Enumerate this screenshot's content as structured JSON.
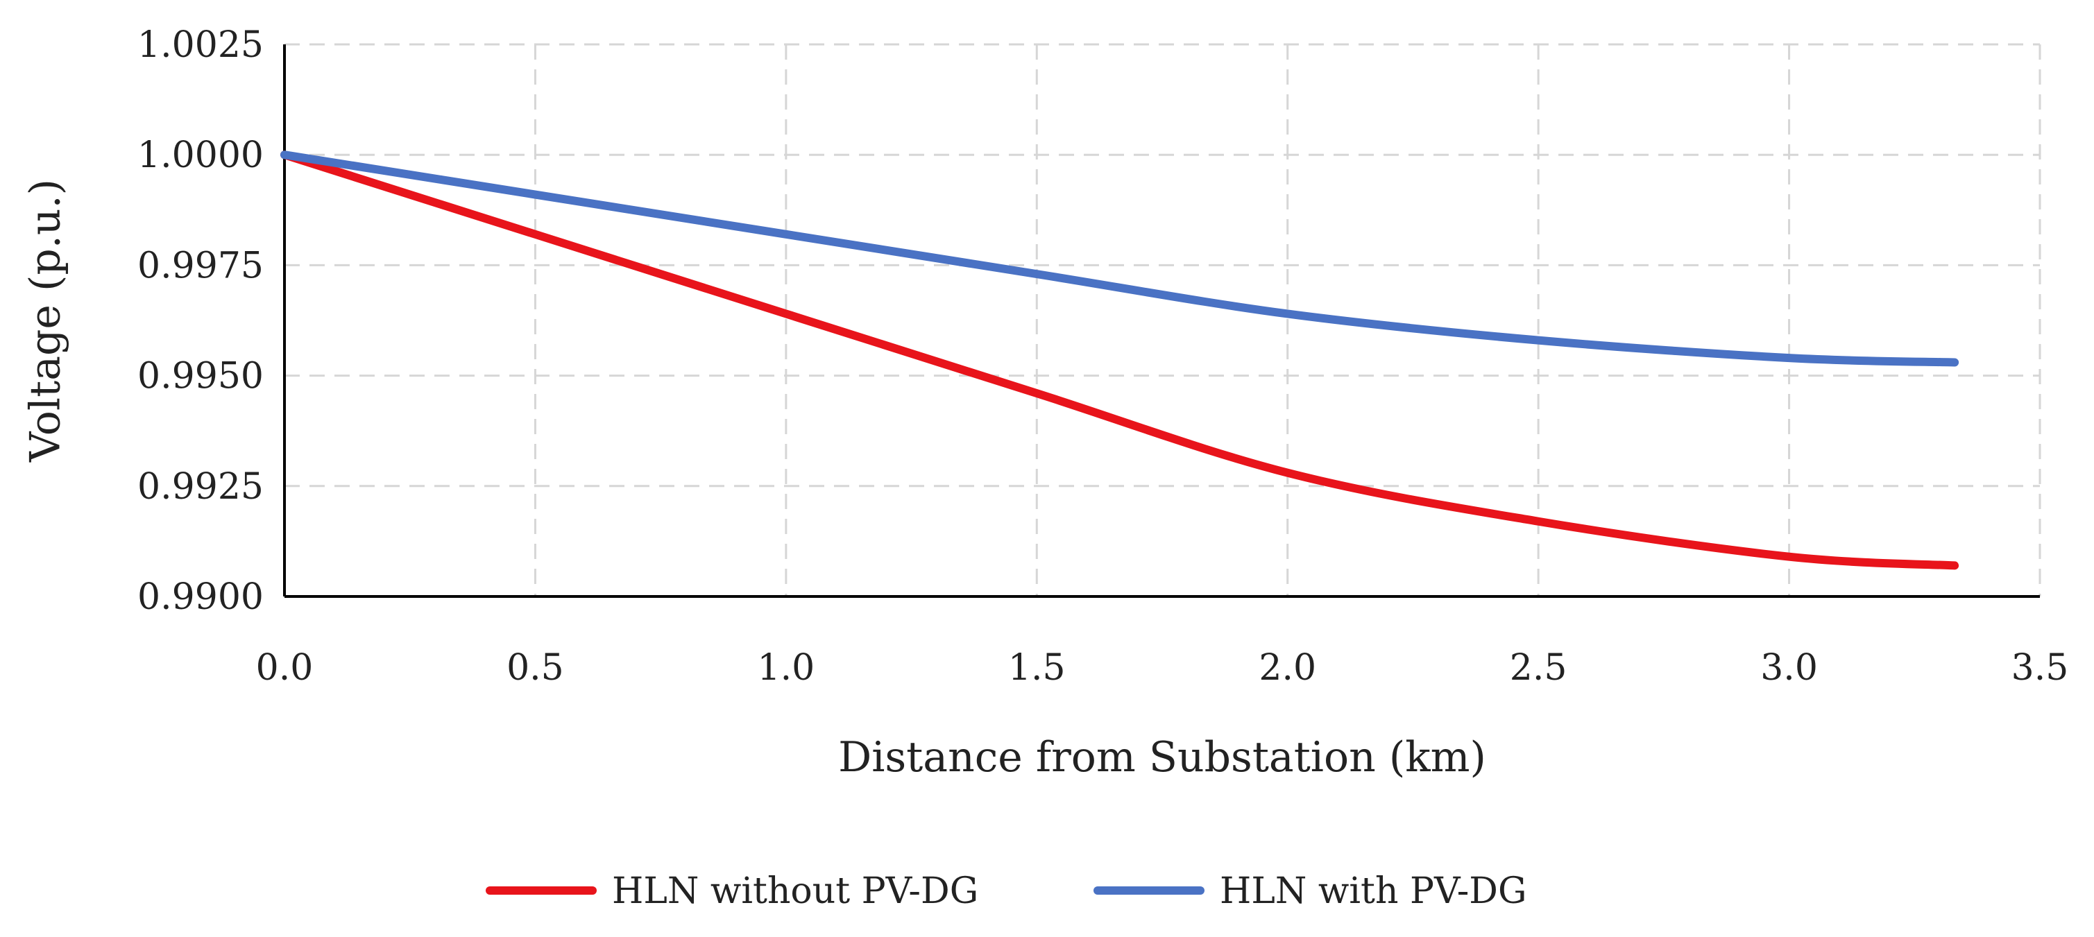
{
  "chart_data": {
    "type": "line",
    "title": "",
    "xlabel": "Distance from Substation (km)",
    "ylabel": "Voltage (p.u.)",
    "xlim": [
      0.0,
      3.5
    ],
    "ylim": [
      0.99,
      1.0025
    ],
    "x_ticks": [
      0.0,
      0.5,
      1.0,
      1.5,
      2.0,
      2.5,
      3.0,
      3.5
    ],
    "x_tick_labels": [
      "0.0",
      "0.5",
      "1.0",
      "1.5",
      "2.0",
      "2.5",
      "3.0",
      "3.5"
    ],
    "y_ticks": [
      0.99,
      0.9925,
      0.995,
      0.9975,
      1.0,
      1.0025
    ],
    "y_tick_labels": [
      "0.9900",
      "0.9925",
      "0.9950",
      "0.9975",
      "1.0000",
      "1.0025"
    ],
    "grid": true,
    "legend_position": "bottom-center",
    "series": [
      {
        "name": "HLN without PV-DG",
        "color": "#e8141b",
        "x": [
          0.0,
          0.5,
          1.0,
          1.5,
          2.0,
          2.5,
          3.0,
          3.33
        ],
        "y": [
          1.0,
          0.9982,
          0.9964,
          0.9946,
          0.9928,
          0.9917,
          0.9909,
          0.9907
        ]
      },
      {
        "name": "HLN with PV-DG",
        "color": "#4a72c4",
        "x": [
          0.0,
          0.5,
          1.0,
          1.5,
          2.0,
          2.5,
          3.0,
          3.33
        ],
        "y": [
          1.0,
          0.9991,
          0.9982,
          0.9973,
          0.9964,
          0.9958,
          0.9954,
          0.9953
        ]
      }
    ]
  }
}
